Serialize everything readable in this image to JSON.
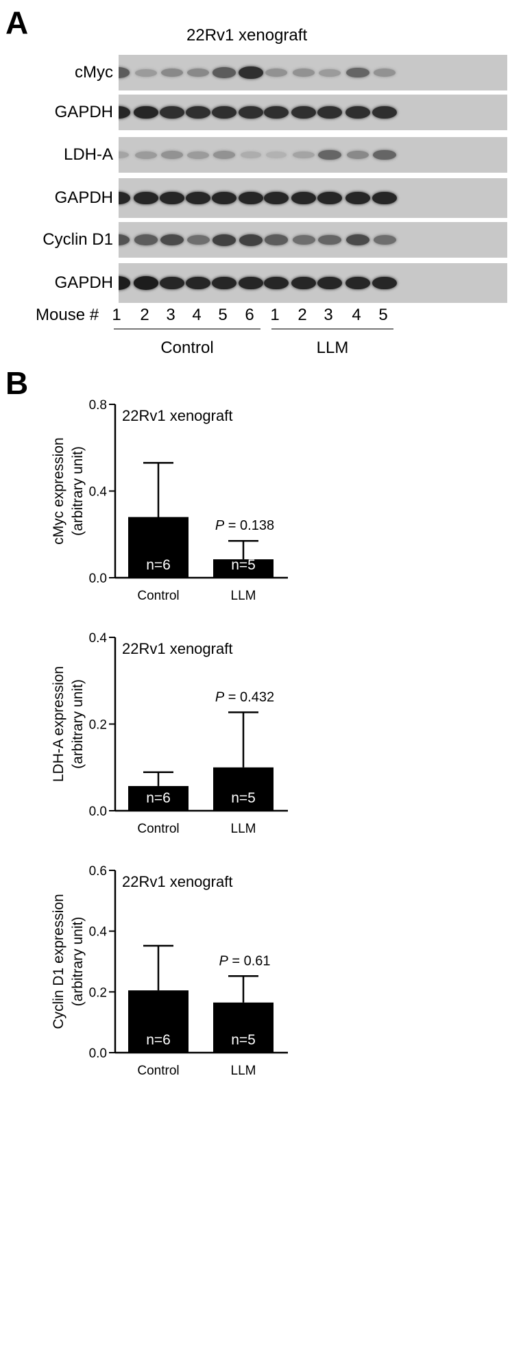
{
  "panel_a": {
    "letter": "A",
    "title": "22Rv1 xenograft",
    "blots": [
      {
        "label": "cMyc",
        "intensities": [
          0.6,
          0.25,
          0.35,
          0.35,
          0.6,
          0.85,
          0.3,
          0.3,
          0.25,
          0.55,
          0.3
        ]
      },
      {
        "label": "GAPDH",
        "intensities": [
          0.9,
          0.9,
          0.85,
          0.85,
          0.85,
          0.85,
          0.85,
          0.85,
          0.85,
          0.85,
          0.85
        ]
      },
      {
        "label": "LDH-A",
        "intensities": [
          0.2,
          0.25,
          0.3,
          0.25,
          0.3,
          0.15,
          0.12,
          0.2,
          0.55,
          0.35,
          0.55
        ]
      },
      {
        "label": "GAPDH",
        "intensities": [
          0.9,
          0.9,
          0.9,
          0.9,
          0.9,
          0.9,
          0.9,
          0.9,
          0.9,
          0.9,
          0.9
        ]
      },
      {
        "label": "Cyclin D1",
        "intensities": [
          0.65,
          0.6,
          0.7,
          0.5,
          0.75,
          0.75,
          0.6,
          0.5,
          0.55,
          0.7,
          0.5
        ]
      },
      {
        "label": "GAPDH",
        "intensities": [
          0.95,
          0.95,
          0.9,
          0.9,
          0.9,
          0.9,
          0.9,
          0.9,
          0.9,
          0.9,
          0.9
        ]
      }
    ],
    "mouse_label": "Mouse #",
    "mouse_numbers": [
      "1",
      "2",
      "3",
      "4",
      "5",
      "6",
      "1",
      "2",
      "3",
      "4",
      "5"
    ],
    "groups": [
      "Control",
      "LLM"
    ]
  },
  "panel_b": {
    "letter": "B"
  },
  "chart_data": [
    {
      "type": "bar",
      "title": "22Rv1 xenograft",
      "ylabel_lines": [
        "cMyc expression",
        "(arbitrary unit)"
      ],
      "categories": [
        "Control",
        "LLM"
      ],
      "values": [
        0.28,
        0.085
      ],
      "errors": [
        0.25,
        0.085
      ],
      "bar_labels": [
        "n=6",
        "n=5"
      ],
      "annotation_prefix": "P",
      "annotation_value": " = 0.138",
      "ylim": [
        0,
        0.8
      ],
      "yticks": [
        "0.0",
        "0.4",
        "0.8"
      ],
      "ytick_values": [
        0,
        0.4,
        0.8
      ]
    },
    {
      "type": "bar",
      "title": "22Rv1 xenograft",
      "ylabel_lines": [
        "LDH-A expression",
        "(arbitrary unit)"
      ],
      "categories": [
        "Control",
        "LLM"
      ],
      "values": [
        0.057,
        0.1
      ],
      "errors": [
        0.032,
        0.127
      ],
      "bar_labels": [
        "n=6",
        "n=5"
      ],
      "annotation_prefix": "P",
      "annotation_value": " = 0.432",
      "ylim": [
        0,
        0.4
      ],
      "yticks": [
        "0.0",
        "0.2",
        "0.4"
      ],
      "ytick_values": [
        0,
        0.2,
        0.4
      ]
    },
    {
      "type": "bar",
      "title": "22Rv1 xenograft",
      "ylabel_lines": [
        "Cyclin D1 expression",
        "(arbitrary unit)"
      ],
      "categories": [
        "Control",
        "LLM"
      ],
      "values": [
        0.205,
        0.165
      ],
      "errors": [
        0.147,
        0.087
      ],
      "bar_labels": [
        "n=6",
        "n=5"
      ],
      "annotation_prefix": "P",
      "annotation_value": " = 0.61",
      "ylim": [
        0,
        0.6
      ],
      "yticks": [
        "0.0",
        "0.2",
        "0.4",
        "0.6"
      ],
      "ytick_values": [
        0,
        0.2,
        0.4,
        0.6
      ]
    }
  ]
}
